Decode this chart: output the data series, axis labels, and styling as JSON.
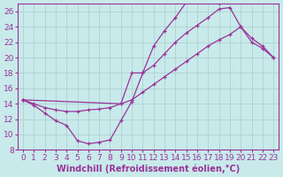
{
  "xlabel": "Windchill (Refroidissement éolien,°C)",
  "bg_color": "#c8eaea",
  "line_color": "#993399",
  "grid_color": "#aacccc",
  "axis_color": "#993399",
  "tick_color": "#993399",
  "xlim": [
    -0.5,
    23.5
  ],
  "ylim": [
    8,
    27
  ],
  "yticks": [
    8,
    10,
    12,
    14,
    16,
    18,
    20,
    22,
    24,
    26
  ],
  "xticks": [
    0,
    1,
    2,
    3,
    4,
    5,
    6,
    7,
    8,
    9,
    10,
    11,
    12,
    13,
    14,
    15,
    16,
    17,
    18,
    19,
    20,
    21,
    22,
    23
  ],
  "curve1_x": [
    0,
    1,
    2,
    3,
    4,
    5,
    6,
    7,
    8,
    9,
    10,
    11,
    12,
    13,
    14,
    15,
    16,
    17,
    18
  ],
  "curve1_y": [
    14.5,
    13.8,
    12.8,
    11.8,
    11.2,
    9.2,
    8.8,
    9.0,
    9.3,
    11.8,
    14.3,
    18.0,
    21.5,
    23.5,
    25.2,
    27.2,
    27.5,
    27.6,
    27.0
  ],
  "curve2_x": [
    0,
    1,
    2,
    3,
    4,
    5,
    6,
    7,
    8,
    9,
    10,
    11,
    12,
    13,
    14,
    15,
    16,
    17,
    18,
    19,
    20,
    21,
    22,
    23
  ],
  "curve2_y": [
    14.5,
    14.0,
    13.5,
    13.2,
    13.0,
    13.0,
    13.2,
    13.3,
    13.5,
    14.0,
    14.5,
    15.5,
    16.5,
    17.5,
    18.5,
    19.5,
    20.5,
    21.5,
    22.3,
    23.0,
    24.0,
    22.5,
    21.5,
    20.0
  ],
  "curve3_x": [
    0,
    9,
    10,
    11,
    12,
    13,
    14,
    15,
    16,
    17,
    18,
    19,
    20,
    21,
    22,
    23
  ],
  "curve3_y": [
    14.5,
    14.0,
    18.0,
    18.0,
    19.0,
    20.5,
    22.0,
    23.2,
    24.2,
    25.2,
    26.3,
    26.5,
    24.0,
    22.0,
    21.2,
    20.0
  ],
  "xlabel_fontsize": 7,
  "tick_fontsize": 6.5,
  "marker": "+"
}
